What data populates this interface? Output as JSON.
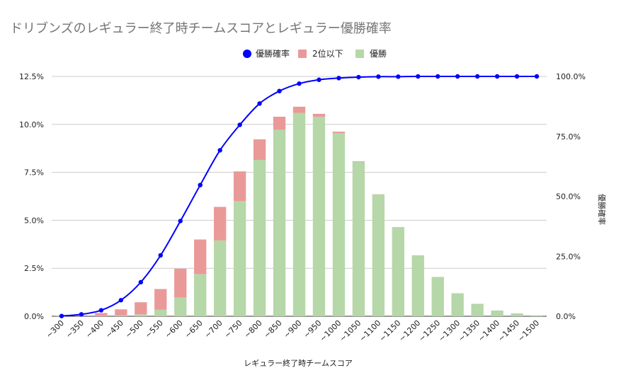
{
  "chart_data": {
    "type": "bar",
    "stacked": true,
    "title": "ドリブンズのレギュラー終了時チームスコアとレギュラー優勝確率",
    "xlabel": "レギュラー終了時チームスコア",
    "ylabel": "",
    "y2label": "優勝確率",
    "categories": [
      "~300",
      "~350",
      "~400",
      "~450",
      "~500",
      "~550",
      "~600",
      "~650",
      "~700",
      "~750",
      "~800",
      "~850",
      "~900",
      "~950",
      "~1000",
      "~1050",
      "~1100",
      "~1150",
      "~1200",
      "~1250",
      "~1300",
      "~1350",
      "~1400",
      "~1450",
      "~1500"
    ],
    "ylim": [
      0,
      12.5
    ],
    "y_ticks": [
      "0.0%",
      "2.5%",
      "5.0%",
      "7.5%",
      "10.0%",
      "12.5%"
    ],
    "y_tick_values": [
      0,
      2.5,
      5.0,
      7.5,
      10.0,
      12.5
    ],
    "y2lim": [
      0,
      100
    ],
    "y2_ticks": [
      "0.0%",
      "25.0%",
      "50.0%",
      "75.0%",
      "100.0%"
    ],
    "y2_tick_values": [
      0,
      25,
      50,
      75,
      100
    ],
    "legend_position": "top-center",
    "series": [
      {
        "name": "優勝",
        "kind": "bar",
        "color": "#b6d7a8",
        "values": [
          0,
          0.01,
          0.02,
          0.04,
          0.1,
          0.35,
          0.98,
          2.2,
          3.95,
          6.0,
          8.15,
          9.72,
          10.6,
          10.4,
          9.55,
          8.05,
          6.35,
          4.65,
          3.18,
          2.05,
          1.2,
          0.65,
          0.3,
          0.15,
          0.05
        ]
      },
      {
        "name": "2位以下",
        "kind": "bar",
        "color": "#ea9999",
        "values": [
          0.01,
          0.04,
          0.15,
          0.32,
          0.63,
          1.07,
          1.5,
          1.8,
          1.75,
          1.55,
          1.07,
          0.68,
          0.32,
          0.15,
          0.07,
          0.03,
          0.01,
          0,
          0,
          0,
          0,
          0,
          0,
          0,
          0
        ]
      },
      {
        "name": "優勝確率",
        "kind": "line",
        "axis": "right",
        "color": "#0000ff",
        "values": [
          0.1,
          0.8,
          2.5,
          6.7,
          14.2,
          25.4,
          39.7,
          54.7,
          69.2,
          79.8,
          88.7,
          93.9,
          97.0,
          98.6,
          99.3,
          99.7,
          99.9,
          99.9,
          100,
          100,
          100,
          100,
          100,
          100,
          100
        ]
      }
    ]
  }
}
